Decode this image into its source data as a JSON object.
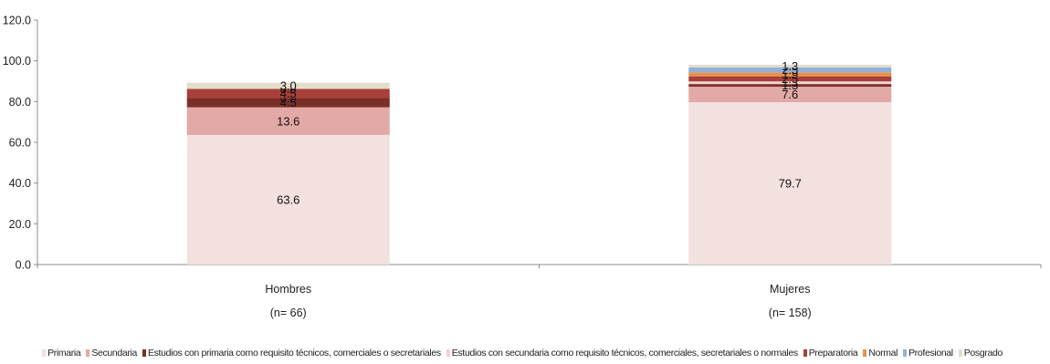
{
  "chart_data": {
    "type": "bar",
    "stacked": true,
    "title": "",
    "xlabel": "",
    "ylabel": "",
    "ylim": [
      0,
      120
    ],
    "yticks": [
      "0.0",
      "20.0",
      "40.0",
      "60.0",
      "80.0",
      "100.0",
      "120.0"
    ],
    "grid": false,
    "legend_position": "bottom",
    "categories": [
      [
        "Hombres",
        "(n= 66)"
      ],
      [
        "Mujeres",
        "(n= 158)"
      ]
    ],
    "series": [
      {
        "name": "Primaria",
        "color": "#F3E1E0",
        "values": [
          63.6,
          79.7
        ],
        "labels": [
          "63.6",
          "79.7"
        ]
      },
      {
        "name": "Secundaria",
        "color": "#E3A9A6",
        "values": [
          13.6,
          7.6
        ],
        "labels": [
          "13.6",
          "7.6"
        ]
      },
      {
        "name": "Estudios con primaria como requisito técnicos, comerciales o secretariales",
        "color": "#7A3029",
        "values": [
          4.5,
          1.3
        ],
        "labels": [
          "4.5",
          "1.3"
        ]
      },
      {
        "name": "Estudios con secundaria como requisito técnicos, comerciales, secretariales o normales",
        "color": "#F2D2D0",
        "values": [
          0.0,
          1.3
        ],
        "labels": [
          "0.0",
          "1.3"
        ]
      },
      {
        "name": "Preparatoria",
        "color": "#A7403A",
        "values": [
          4.5,
          2.5
        ],
        "labels": [
          "4.5",
          "2.5"
        ]
      },
      {
        "name": "Normal",
        "color": "#E8934A",
        "values": [
          0.0,
          1.9
        ],
        "labels": [
          "0.0",
          "1.9"
        ]
      },
      {
        "name": "Profesional",
        "color": "#93B1D8",
        "values": [
          0.0,
          2.5
        ],
        "labels": [
          "0.0",
          "2.5"
        ]
      },
      {
        "name": "Posgrado",
        "color": "#E4DDCC",
        "values": [
          3.0,
          1.3
        ],
        "labels": [
          "3.0",
          "1.3"
        ]
      }
    ]
  }
}
